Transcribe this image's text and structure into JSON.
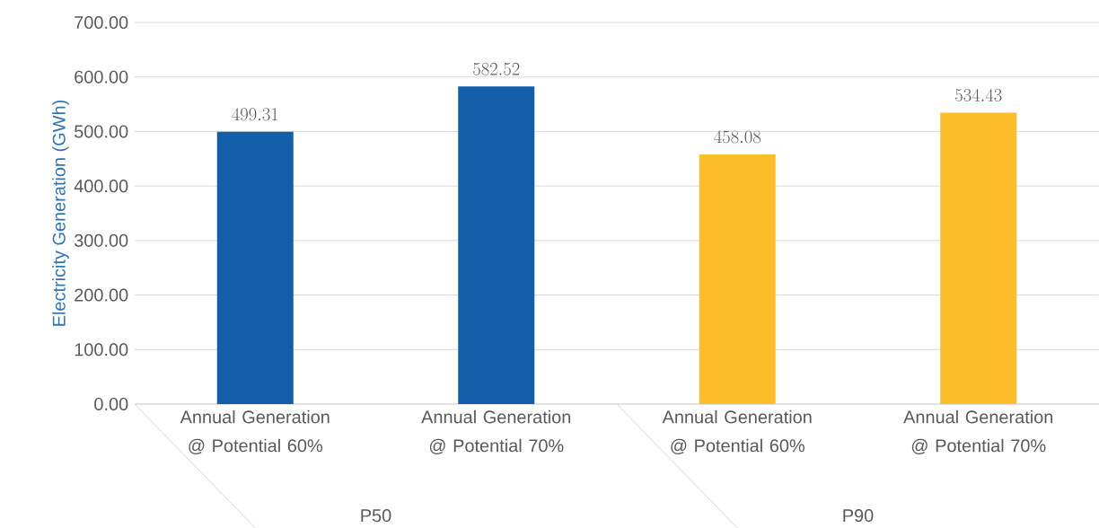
{
  "chart_data": {
    "type": "bar",
    "ylabel": "Electricity Generation (GWh)",
    "categories": [
      "Annual Generation @ Potential 60%",
      "Annual Generation @ Potential 70%",
      "Annual Generation @ Potential 60%",
      "Annual Generation @ Potential 70%"
    ],
    "values": [
      499.31,
      582.52,
      458.08,
      534.43
    ],
    "colors": [
      "#125ea8",
      "#125ea8",
      "#fdbd2a",
      "#fdbd2a"
    ],
    "ylim": [
      0,
      700
    ],
    "yticks": [
      {
        "value": 0,
        "label": "0.00"
      },
      {
        "value": 100,
        "label": "100.00"
      },
      {
        "value": 200,
        "label": "200.00"
      },
      {
        "value": 300,
        "label": "300.00"
      },
      {
        "value": 400,
        "label": "400.00"
      },
      {
        "value": 500,
        "label": "500.00"
      },
      {
        "value": 600,
        "label": "600.00"
      },
      {
        "value": 700,
        "label": "700.00"
      }
    ],
    "grid": "y",
    "data_labels": true,
    "annotations": [
      "P50",
      "P90"
    ]
  }
}
